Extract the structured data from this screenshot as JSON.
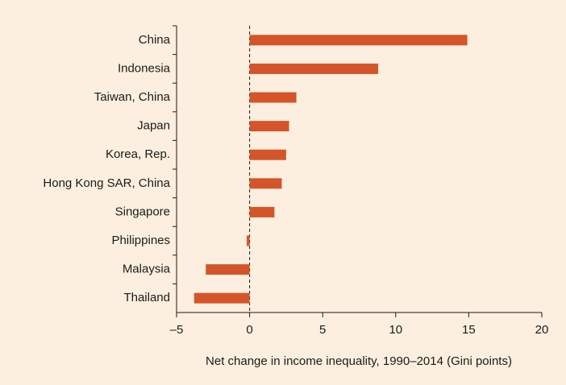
{
  "chart_data": {
    "type": "hbar",
    "x_label": "Net change in income inequality, 1990–2014 (Gini points)",
    "categories": [
      "China",
      "Indonesia",
      "Taiwan, China",
      "Japan",
      "Korea, Rep.",
      "Hong Kong SAR, China",
      "Singapore",
      "Philippines",
      "Malaysia",
      "Thailand"
    ],
    "values": [
      14.9,
      8.8,
      3.2,
      2.7,
      2.5,
      2.2,
      1.7,
      -0.2,
      -3.0,
      -3.8
    ],
    "color": "#d4552a",
    "xlim": [
      -5,
      20
    ],
    "xticks": [
      {
        "value": -5,
        "label": "–5"
      },
      0,
      5,
      10,
      15,
      20
    ]
  }
}
